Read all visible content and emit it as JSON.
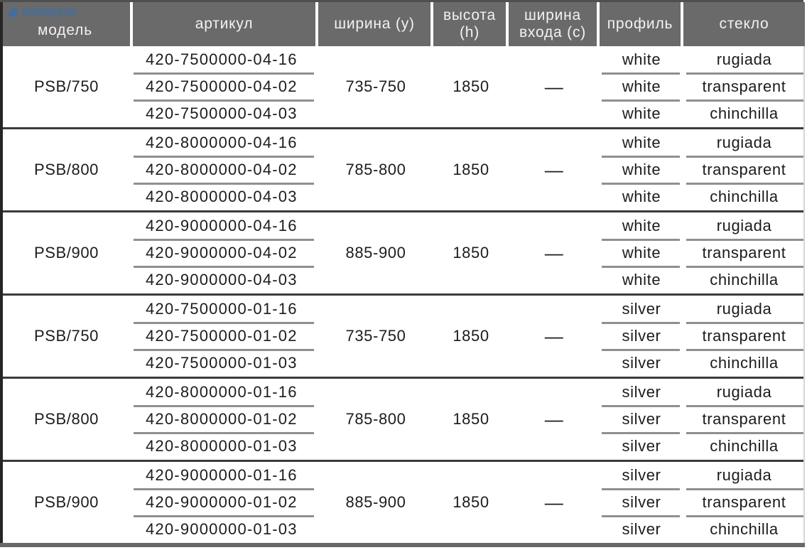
{
  "logo": {
    "text": "Акварель",
    "icon": "bird-icon",
    "color": "#3e6ea5"
  },
  "colors": {
    "header_bg": "#6a6a6a",
    "header_text": "#f2f2f2",
    "body_text": "#1c1c1c",
    "subrow_line": "#8f8f8f",
    "block_line": "#3b3b3b"
  },
  "table": {
    "headers": [
      "модель",
      "артикул",
      "ширина (y)",
      "высота (h)",
      "ширина входа (c)",
      "профиль",
      "стекло"
    ],
    "blocks": [
      {
        "model": "PSB/750",
        "width": "735-750",
        "height": "1850",
        "entry": "—",
        "rows": [
          {
            "article": "420-7500000-04-16",
            "profile": "white",
            "glass": "rugiada"
          },
          {
            "article": "420-7500000-04-02",
            "profile": "white",
            "glass": "transparent"
          },
          {
            "article": "420-7500000-04-03",
            "profile": "white",
            "glass": "chinchilla"
          }
        ]
      },
      {
        "model": "PSB/800",
        "width": "785-800",
        "height": "1850",
        "entry": "—",
        "rows": [
          {
            "article": "420-8000000-04-16",
            "profile": "white",
            "glass": "rugiada"
          },
          {
            "article": "420-8000000-04-02",
            "profile": "white",
            "glass": "transparent"
          },
          {
            "article": "420-8000000-04-03",
            "profile": "white",
            "glass": "chinchilla"
          }
        ]
      },
      {
        "model": "PSB/900",
        "width": "885-900",
        "height": "1850",
        "entry": "—",
        "rows": [
          {
            "article": "420-9000000-04-16",
            "profile": "white",
            "glass": "rugiada"
          },
          {
            "article": "420-9000000-04-02",
            "profile": "white",
            "glass": "transparent"
          },
          {
            "article": "420-9000000-04-03",
            "profile": "white",
            "glass": "chinchilla"
          }
        ]
      },
      {
        "model": "PSB/750",
        "width": "735-750",
        "height": "1850",
        "entry": "—",
        "rows": [
          {
            "article": "420-7500000-01-16",
            "profile": "silver",
            "glass": "rugiada"
          },
          {
            "article": "420-7500000-01-02",
            "profile": "silver",
            "glass": "transparent"
          },
          {
            "article": "420-7500000-01-03",
            "profile": "silver",
            "glass": "chinchilla"
          }
        ]
      },
      {
        "model": "PSB/800",
        "width": "785-800",
        "height": "1850",
        "entry": "—",
        "rows": [
          {
            "article": "420-8000000-01-16",
            "profile": "silver",
            "glass": "rugiada"
          },
          {
            "article": "420-8000000-01-02",
            "profile": "silver",
            "glass": "transparent"
          },
          {
            "article": "420-8000000-01-03",
            "profile": "silver",
            "glass": "chinchilla"
          }
        ]
      },
      {
        "model": "PSB/900",
        "width": "885-900",
        "height": "1850",
        "entry": "—",
        "rows": [
          {
            "article": "420-9000000-01-16",
            "profile": "silver",
            "glass": "rugiada"
          },
          {
            "article": "420-9000000-01-02",
            "profile": "silver",
            "glass": "transparent"
          },
          {
            "article": "420-9000000-01-03",
            "profile": "silver",
            "glass": "chinchilla"
          }
        ]
      }
    ]
  }
}
